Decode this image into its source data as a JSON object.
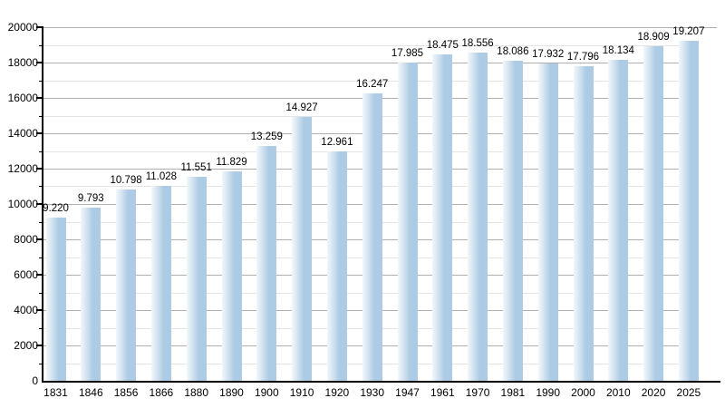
{
  "chart_data": {
    "type": "bar",
    "title": "",
    "xlabel": "",
    "ylabel": "",
    "categories": [
      "1831",
      "1846",
      "1856",
      "1866",
      "1880",
      "1890",
      "1900",
      "1910",
      "1920",
      "1930",
      "1947",
      "1961",
      "1970",
      "1981",
      "1990",
      "2000",
      "2010",
      "2020",
      "2025"
    ],
    "values": [
      9220,
      9793,
      10798,
      11028,
      11551,
      11829,
      13259,
      14927,
      12961,
      16247,
      17985,
      18475,
      18556,
      18086,
      17932,
      17796,
      18134,
      18909,
      19207
    ],
    "value_labels": [
      "9.220",
      "9.793",
      "10.798",
      "11.028",
      "11.551",
      "11.829",
      "13.259",
      "14.927",
      "12.961",
      "16.247",
      "17.985",
      "18.475",
      "18.556",
      "18.086",
      "17.932",
      "17.796",
      "18.134",
      "18.909",
      "19.207"
    ],
    "ylim": [
      0,
      20000
    ],
    "y_tick_interval": 2000,
    "y_minor_tick_interval": 1000,
    "y_tick_labels": [
      "0",
      "2000",
      "4000",
      "6000",
      "8000",
      "10000",
      "12000",
      "14000",
      "16000",
      "18000",
      "20000"
    ],
    "grid": "horizontal",
    "legend_position": "none",
    "colors": {
      "bar": "#adcbe4",
      "bar_gradient_left": "#f2f7fb",
      "bar_gradient_mid": "#d3e2f0",
      "gridline_major": "#b0b0b0",
      "gridline_minor": "#e4e4e4",
      "axis": "#000000",
      "text": "#000000",
      "background": "#ffffff"
    }
  }
}
